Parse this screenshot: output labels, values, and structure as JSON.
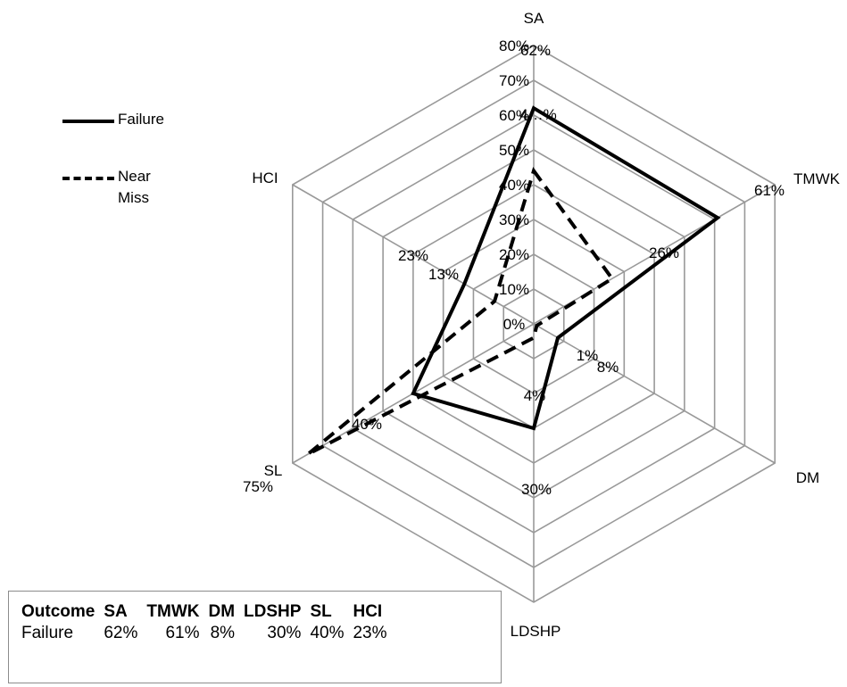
{
  "chart_data": {
    "type": "radar",
    "axes": [
      "SA",
      "TMWK",
      "DM",
      "LDSHP",
      "SL",
      "HCI"
    ],
    "radial_ticks": [
      "0%",
      "10%",
      "20%",
      "30%",
      "40%",
      "50%",
      "60%",
      "70%",
      "80%"
    ],
    "rmax": 80,
    "series": [
      {
        "name": "Failure",
        "values": [
          62,
          61,
          8,
          30,
          40,
          23
        ],
        "labels": [
          "62%",
          "61%",
          "8%",
          "30%",
          "40%",
          "23%"
        ],
        "style": "solid"
      },
      {
        "name": "Near Miss",
        "values": [
          44,
          26,
          1,
          4,
          75,
          13
        ],
        "labels": [
          "4…%",
          "26%",
          "1%",
          "4%",
          "75%",
          "13%"
        ],
        "style": "dashed"
      }
    ],
    "colors": {
      "grid": "#999999",
      "series": "#000000"
    }
  },
  "legend": {
    "items": [
      {
        "label": "Failure"
      },
      {
        "label": "Near Miss"
      }
    ]
  },
  "table": {
    "headers": [
      "Outcome",
      "SA",
      "TMWK",
      "DM",
      "LDSHP",
      "SL",
      "HCI"
    ],
    "rows": [
      [
        "Failure",
        "62%",
        "61%",
        "8%",
        "30%",
        "40%",
        "23%"
      ]
    ]
  }
}
